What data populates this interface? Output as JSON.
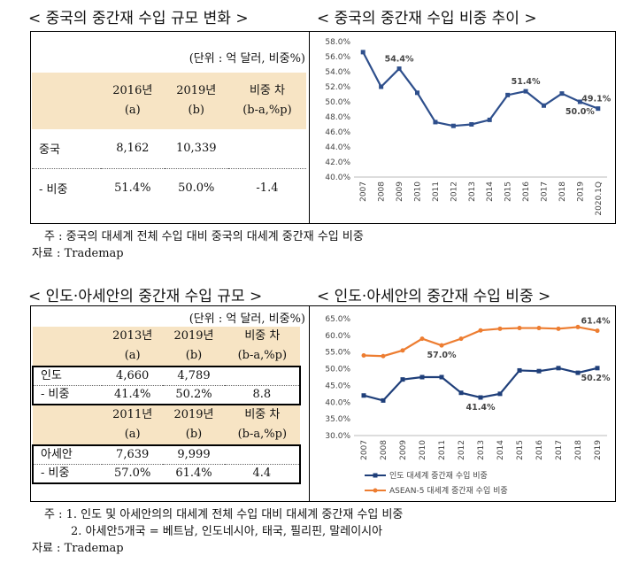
{
  "chart_data": [
    {
      "type": "line",
      "title": "< 중국의 중간재 수입 비중 추이 >",
      "categories": [
        "2007",
        "2008",
        "2009",
        "2010",
        "2011",
        "2012",
        "2013",
        "2014",
        "2015",
        "2016",
        "2017",
        "2018",
        "2019",
        "2020.1Q"
      ],
      "values": [
        56.6,
        52.0,
        54.4,
        51.2,
        47.3,
        46.8,
        47.0,
        47.6,
        50.9,
        51.4,
        49.5,
        51.1,
        50.0,
        49.1
      ],
      "value_labels": [
        null,
        null,
        "54.4%",
        null,
        null,
        null,
        null,
        null,
        null,
        "51.4%",
        null,
        null,
        "50.0%",
        "49.1%"
      ],
      "color": "#2e4f8c",
      "ylim": [
        40,
        58
      ],
      "yticks": [
        {
          "value": 40,
          "label": "40.0%"
        },
        {
          "value": 42,
          "label": "42.0%"
        },
        {
          "value": 44,
          "label": "44.0%"
        },
        {
          "value": 46,
          "label": "46.0%"
        },
        {
          "value": 48,
          "label": "48.0%"
        },
        {
          "value": 50,
          "label": "50.0%"
        },
        {
          "value": 52,
          "label": "52.0%"
        },
        {
          "value": 54,
          "label": "54.0%"
        },
        {
          "value": 56,
          "label": "56.0%"
        },
        {
          "value": 58,
          "label": "58.0%"
        }
      ],
      "grid": false
    },
    {
      "type": "line",
      "title": "< 인도·아세안의 중간재 수입 비중 >",
      "categories": [
        "2007",
        "2008",
        "2009",
        "2010",
        "2011",
        "2012",
        "2013",
        "2014",
        "2015",
        "2016",
        "2017",
        "2018",
        "2019"
      ],
      "series": [
        {
          "name": "인도 대세계 중간재 수입 비중",
          "color": "#1f3f7a",
          "values": [
            42.0,
            40.5,
            46.8,
            47.5,
            47.5,
            42.8,
            41.4,
            42.5,
            49.5,
            49.3,
            50.2,
            48.8,
            50.2
          ],
          "value_labels": [
            null,
            null,
            null,
            null,
            null,
            null,
            "41.4%",
            null,
            null,
            null,
            null,
            null,
            "50.2%"
          ]
        },
        {
          "name": "ASEAN-5 대세계 중간재 수입 비중",
          "color": "#ed7d31",
          "values": [
            54.0,
            53.8,
            55.5,
            59.0,
            57.0,
            59.0,
            61.5,
            62.0,
            62.2,
            62.2,
            62.0,
            62.5,
            61.4
          ],
          "value_labels": [
            null,
            null,
            null,
            null,
            "57.0%",
            null,
            null,
            null,
            null,
            null,
            null,
            null,
            "61.4%"
          ]
        }
      ],
      "ylim": [
        30,
        65
      ],
      "yticks": [
        {
          "value": 30,
          "label": "30.0%"
        },
        {
          "value": 35,
          "label": "35.0%"
        },
        {
          "value": 40,
          "label": "40.0%"
        },
        {
          "value": 45,
          "label": "45.0%"
        },
        {
          "value": 50,
          "label": "50.0%"
        },
        {
          "value": 55,
          "label": "55.0%"
        },
        {
          "value": 60,
          "label": "60.0%"
        },
        {
          "value": 65,
          "label": "65.0%"
        }
      ],
      "grid": false,
      "legend": "bottom"
    }
  ],
  "sections": [
    {
      "title": "< 중국의 중간재 수입 규모 변화 >",
      "unit": "(단위 : 억 달러, 비중%)",
      "header": [
        [
          "2016년",
          "(a)"
        ],
        [
          "2019년",
          "(b)"
        ],
        [
          "비중 차",
          "(b-a,%p)"
        ]
      ],
      "rows": [
        [
          "중국",
          "8,162",
          "10,339"
        ],
        [
          "- 비중",
          "51.4%",
          "50.0%",
          "-1.4"
        ]
      ],
      "notes": [
        "주 : 중국의 대세계 전체 수입 대비 중국의 대세계 중간재 수입 비중",
        "자료 : Trademap"
      ]
    },
    {
      "title": "< 인도·아세안의 중간재 수입 규모 >",
      "unit": "(단위 : 억 달러, 비중%)",
      "header": [
        [
          "2013년",
          "(a)"
        ],
        [
          "2019년",
          "(b)"
        ],
        [
          "비중 차",
          "(b-a,%p)"
        ]
      ],
      "rows": [
        [
          "인도",
          "4,660",
          "4,789"
        ],
        [
          "- 비중",
          "41.4%",
          "50.2%",
          "8.8"
        ]
      ],
      "header2": [
        [
          "2011년",
          "(a)"
        ],
        [
          "2019년",
          "(b)"
        ],
        [
          "비중 차",
          "(b-a,%p)"
        ]
      ],
      "rows2": [
        [
          "아세안",
          "7,639",
          "9,999"
        ],
        [
          "- 비중",
          "57.0%",
          "61.4%",
          "4.4"
        ]
      ],
      "notes": [
        "주 : 1. 인도 및 아세안의의 대세계 전체 수입 대비 대세계 중간재 수입 비중",
        "2. 아세안5개국 = 베트남, 인도네시아, 태국, 필리핀, 말레이시아",
        "자료 : Trademap"
      ]
    }
  ]
}
